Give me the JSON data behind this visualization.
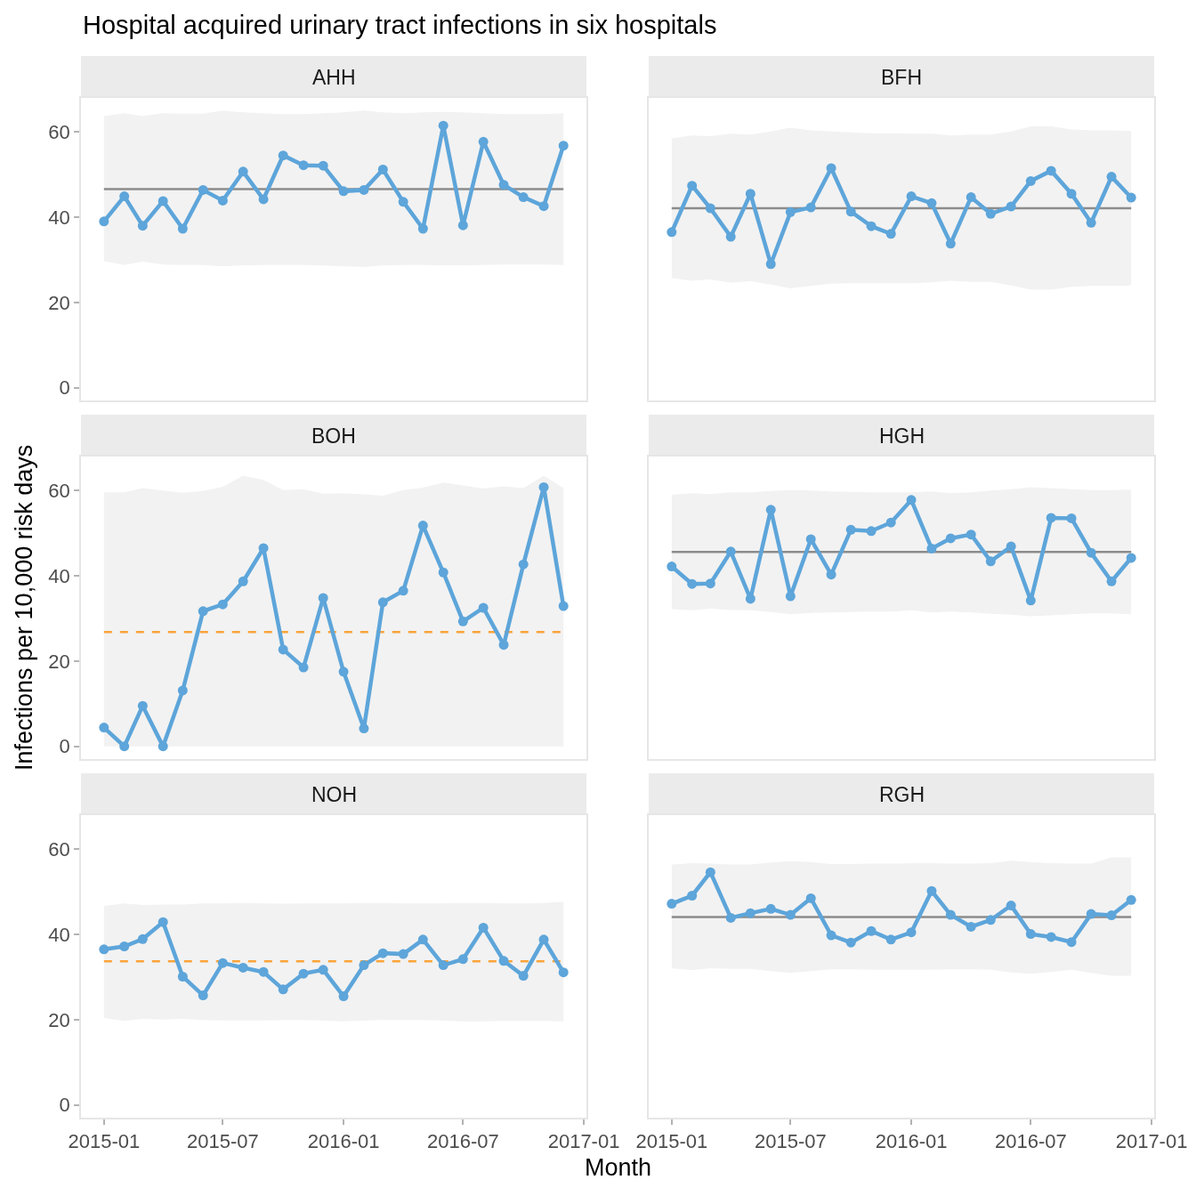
{
  "chart_data": [
    {
      "type": "line",
      "title": "AHH",
      "annotations": [
        "Hospital acquired urinary tract infections in six hospitals"
      ],
      "x": [
        "2015-01",
        "2015-02",
        "2015-03",
        "2015-04",
        "2015-05",
        "2015-06",
        "2015-07",
        "2015-08",
        "2015-09",
        "2015-10",
        "2015-11",
        "2015-12",
        "2016-01",
        "2016-02",
        "2016-03",
        "2016-04",
        "2016-05",
        "2016-06",
        "2016-07",
        "2016-08",
        "2016-09",
        "2016-10",
        "2016-11",
        "2016-12"
      ],
      "series": [
        {
          "color": "#5da5da",
          "values": [
            39.0,
            44.9,
            38.0,
            43.8,
            37.3,
            46.4,
            43.9,
            50.7,
            44.2,
            54.5,
            52.2,
            52.1,
            46.1,
            46.4,
            51.2,
            43.6,
            37.3,
            61.5,
            38.1,
            57.7,
            47.6,
            44.7,
            42.6,
            56.8
          ],
          "upper": [
            63.7,
            64.4,
            63.7,
            64.4,
            64.3,
            64.3,
            65.0,
            64.6,
            64.4,
            64.2,
            64.2,
            64.4,
            64.6,
            65.0,
            64.6,
            64.4,
            64.6,
            64.7,
            64.6,
            64.4,
            64.2,
            64.2,
            64.2,
            64.4
          ],
          "lower": [
            29.7,
            28.8,
            29.6,
            28.9,
            28.8,
            28.8,
            28.5,
            28.7,
            28.8,
            28.8,
            28.8,
            28.7,
            28.5,
            28.3,
            28.7,
            28.8,
            28.8,
            28.7,
            28.7,
            28.8,
            28.9,
            28.9,
            28.9,
            28.8
          ]
        }
      ],
      "ref_lines": [
        {
          "axis": "y",
          "value": 46.6,
          "color": "#8c8c8c",
          "line_style": "solid"
        }
      ],
      "xlim": [
        "2014-11-27",
        "2017-01-05"
      ],
      "ylim": [
        -3,
        68
      ],
      "yticks": [
        0,
        20,
        40,
        60
      ],
      "marker": "circle",
      "line_style": "solid",
      "tick_labels": "y"
    },
    {
      "type": "line",
      "title": "BFH",
      "x": [
        "2015-01",
        "2015-02",
        "2015-03",
        "2015-04",
        "2015-05",
        "2015-06",
        "2015-07",
        "2015-08",
        "2015-09",
        "2015-10",
        "2015-11",
        "2015-12",
        "2016-01",
        "2016-02",
        "2016-03",
        "2016-04",
        "2016-05",
        "2016-06",
        "2016-07",
        "2016-08",
        "2016-09",
        "2016-10",
        "2016-11",
        "2016-12"
      ],
      "series": [
        {
          "color": "#5da5da",
          "values": [
            36.5,
            47.4,
            42.1,
            35.4,
            45.5,
            29.0,
            41.2,
            42.3,
            51.5,
            41.3,
            37.9,
            36.1,
            44.9,
            43.3,
            33.8,
            44.7,
            40.8,
            42.5,
            48.5,
            50.9,
            45.5,
            38.7,
            49.5,
            44.6
          ],
          "upper": [
            58.5,
            59.2,
            59.0,
            59.6,
            59.4,
            60.1,
            61.0,
            60.4,
            60.1,
            59.9,
            59.7,
            59.7,
            59.6,
            59.6,
            59.2,
            59.4,
            59.4,
            60.1,
            61.3,
            61.3,
            60.6,
            60.4,
            60.4,
            60.2
          ],
          "lower": [
            25.7,
            25.1,
            25.4,
            24.6,
            25.0,
            24.2,
            23.3,
            23.9,
            24.4,
            24.5,
            24.5,
            24.5,
            24.5,
            24.7,
            25.1,
            24.8,
            24.8,
            24.0,
            23.0,
            23.0,
            23.7,
            23.9,
            23.9,
            24.0
          ]
        }
      ],
      "ref_lines": [
        {
          "axis": "y",
          "value": 42.1,
          "color": "#8c8c8c",
          "line_style": "solid"
        }
      ],
      "xlim": [
        "2014-11-27",
        "2017-01-05"
      ],
      "ylim": [
        -3,
        68
      ],
      "marker": "circle",
      "line_style": "solid",
      "tick_labels": false
    },
    {
      "type": "line",
      "title": "BOH",
      "ylabel": "Infections per 10,000 risk days",
      "x": [
        "2015-01",
        "2015-02",
        "2015-03",
        "2015-04",
        "2015-05",
        "2015-06",
        "2015-07",
        "2015-08",
        "2015-09",
        "2015-10",
        "2015-11",
        "2015-12",
        "2016-01",
        "2016-02",
        "2016-03",
        "2016-04",
        "2016-05",
        "2016-06",
        "2016-07",
        "2016-08",
        "2016-09",
        "2016-10",
        "2016-11",
        "2016-12"
      ],
      "series": [
        {
          "color": "#5da5da",
          "values": [
            4.4,
            0,
            9.5,
            0,
            13.1,
            31.7,
            33.3,
            38.7,
            46.5,
            22.7,
            18.5,
            34.8,
            17.5,
            4.2,
            33.8,
            36.5,
            51.8,
            40.8,
            29.3,
            32.5,
            23.8,
            42.7,
            60.8,
            32.9
          ],
          "upper": [
            59.6,
            59.6,
            60.6,
            60.0,
            59.5,
            59.9,
            60.9,
            63.5,
            62.5,
            60.1,
            60.3,
            59.3,
            59.4,
            59.1,
            58.8,
            60.1,
            60.7,
            61.9,
            61.2,
            60.5,
            61.0,
            60.6,
            63.5,
            60.6
          ],
          "lower": [
            0,
            0,
            0,
            0,
            0,
            0,
            0,
            0,
            0,
            0,
            0,
            0,
            0,
            0,
            0,
            0,
            0,
            0,
            0,
            0,
            0,
            0,
            0,
            0
          ]
        }
      ],
      "ref_lines": [
        {
          "axis": "y",
          "value": 26.8,
          "color": "#faa43a",
          "line_style": "dashed"
        }
      ],
      "xlim": [
        "2014-11-27",
        "2017-01-05"
      ],
      "ylim": [
        -3,
        68
      ],
      "yticks": [
        0,
        20,
        40,
        60
      ],
      "marker": "circle",
      "line_style": "solid",
      "tick_labels": "y"
    },
    {
      "type": "line",
      "title": "HGH",
      "x": [
        "2015-01",
        "2015-02",
        "2015-03",
        "2015-04",
        "2015-05",
        "2015-06",
        "2015-07",
        "2015-08",
        "2015-09",
        "2015-10",
        "2015-11",
        "2015-12",
        "2016-01",
        "2016-02",
        "2016-03",
        "2016-04",
        "2016-05",
        "2016-06",
        "2016-07",
        "2016-08",
        "2016-09",
        "2016-10",
        "2016-11",
        "2016-12"
      ],
      "series": [
        {
          "color": "#5da5da",
          "values": [
            42.2,
            38.1,
            38.2,
            45.7,
            34.6,
            55.5,
            35.2,
            48.6,
            40.3,
            50.8,
            50.5,
            52.5,
            57.8,
            46.4,
            48.8,
            49.7,
            43.4,
            46.9,
            34.2,
            53.6,
            53.5,
            45.4,
            38.7,
            44.2
          ],
          "upper": [
            59.0,
            59.4,
            59.2,
            59.6,
            59.6,
            59.9,
            60.1,
            60.0,
            59.8,
            59.7,
            59.6,
            59.6,
            59.6,
            59.8,
            59.4,
            59.6,
            60.0,
            60.3,
            60.8,
            60.6,
            60.3,
            60.1,
            60.1,
            60.2
          ],
          "lower": [
            32.2,
            31.9,
            32.3,
            32.0,
            31.9,
            31.5,
            31.0,
            31.3,
            31.4,
            31.5,
            31.6,
            31.6,
            31.9,
            31.4,
            31.6,
            31.4,
            31.1,
            30.9,
            30.5,
            30.7,
            31.0,
            31.2,
            31.2,
            31.0
          ]
        }
      ],
      "ref_lines": [
        {
          "axis": "y",
          "value": 45.6,
          "color": "#8c8c8c",
          "line_style": "solid"
        }
      ],
      "xlim": [
        "2014-11-27",
        "2017-01-05"
      ],
      "ylim": [
        -3,
        68
      ],
      "marker": "circle",
      "line_style": "solid",
      "tick_labels": false
    },
    {
      "type": "line",
      "title": "NOH",
      "xlabel": "Month",
      "x": [
        "2015-01",
        "2015-02",
        "2015-03",
        "2015-04",
        "2015-05",
        "2015-06",
        "2015-07",
        "2015-08",
        "2015-09",
        "2015-10",
        "2015-11",
        "2015-12",
        "2016-01",
        "2016-02",
        "2016-03",
        "2016-04",
        "2016-05",
        "2016-06",
        "2016-07",
        "2016-08",
        "2016-09",
        "2016-10",
        "2016-11",
        "2016-12"
      ],
      "series": [
        {
          "color": "#5da5da",
          "values": [
            36.5,
            37.2,
            38.9,
            42.9,
            30.1,
            25.7,
            33.3,
            32.2,
            31.2,
            27.1,
            30.8,
            31.7,
            25.5,
            32.8,
            35.6,
            35.4,
            38.8,
            32.8,
            34.2,
            41.6,
            33.8,
            30.3,
            38.8,
            31.1
          ],
          "upper": [
            46.7,
            47.3,
            46.9,
            47.0,
            47.0,
            47.3,
            47.3,
            47.4,
            47.3,
            47.2,
            47.3,
            47.3,
            47.3,
            47.4,
            47.4,
            47.3,
            47.3,
            47.3,
            47.4,
            47.4,
            47.3,
            47.3,
            47.4,
            47.7
          ],
          "lower": [
            20.4,
            19.7,
            20.2,
            20.0,
            20.2,
            19.9,
            19.8,
            19.8,
            19.8,
            19.9,
            19.9,
            19.8,
            19.6,
            19.8,
            19.9,
            19.9,
            19.9,
            19.8,
            19.6,
            19.6,
            19.7,
            19.7,
            19.7,
            19.6
          ]
        }
      ],
      "ref_lines": [
        {
          "axis": "y",
          "value": 33.7,
          "color": "#faa43a",
          "line_style": "dashed"
        }
      ],
      "xlim": [
        "2014-11-27",
        "2017-01-05"
      ],
      "ylim": [
        -3,
        68
      ],
      "xticks": [
        "2015-01",
        "2015-07",
        "2016-01",
        "2016-07",
        "2017-01"
      ],
      "yticks": [
        0,
        20,
        40,
        60
      ],
      "marker": "circle",
      "line_style": "solid"
    },
    {
      "type": "line",
      "title": "RGH",
      "x": [
        "2015-01",
        "2015-02",
        "2015-03",
        "2015-04",
        "2015-05",
        "2015-06",
        "2015-07",
        "2015-08",
        "2015-09",
        "2015-10",
        "2015-11",
        "2015-12",
        "2016-01",
        "2016-02",
        "2016-03",
        "2016-04",
        "2016-05",
        "2016-06",
        "2016-07",
        "2016-08",
        "2016-09",
        "2016-10",
        "2016-11",
        "2016-12"
      ],
      "series": [
        {
          "color": "#5da5da",
          "values": [
            47.2,
            49.1,
            54.6,
            43.9,
            45.0,
            46.0,
            44.6,
            48.5,
            39.8,
            38.1,
            40.8,
            38.8,
            40.5,
            50.2,
            44.6,
            41.8,
            43.4,
            46.8,
            40.1,
            39.4,
            38.2,
            44.8,
            44.5,
            48.1
          ],
          "upper": [
            56.4,
            56.7,
            56.6,
            56.4,
            56.4,
            56.9,
            57.2,
            57.0,
            56.5,
            56.5,
            56.6,
            56.6,
            56.7,
            56.7,
            56.6,
            56.6,
            56.7,
            57.3,
            57.0,
            56.7,
            56.6,
            56.6,
            58.1,
            58.1
          ],
          "lower": [
            32.1,
            31.6,
            32.1,
            31.9,
            31.9,
            31.4,
            31.0,
            31.4,
            31.8,
            31.8,
            31.7,
            31.7,
            31.7,
            31.7,
            31.8,
            31.8,
            31.7,
            31.1,
            30.8,
            31.2,
            31.7,
            31.0,
            30.3,
            30.3
          ]
        }
      ],
      "ref_lines": [
        {
          "axis": "y",
          "value": 44.1,
          "color": "#8c8c8c",
          "line_style": "solid"
        }
      ],
      "xlim": [
        "2014-11-27",
        "2017-01-05"
      ],
      "ylim": [
        -3,
        68
      ],
      "xticks": [
        "2015-01",
        "2015-07",
        "2016-01",
        "2016-07",
        "2017-01"
      ],
      "marker": "circle",
      "line_style": "solid",
      "tick_labels": "x"
    }
  ]
}
